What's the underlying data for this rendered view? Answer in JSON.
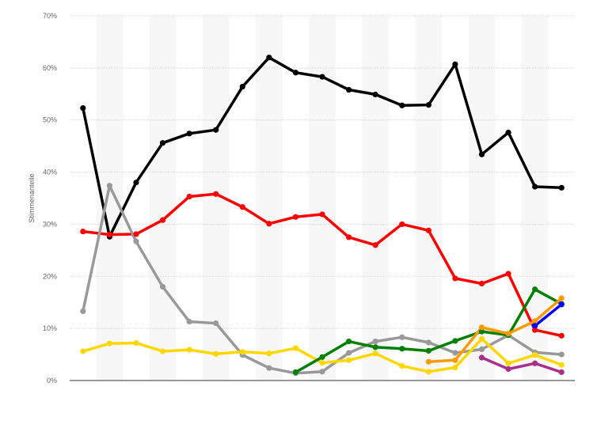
{
  "chart_data": {
    "type": "line",
    "title": "",
    "xlabel": "",
    "ylabel": "Stimmenanteile",
    "ylim": [
      0,
      70
    ],
    "yticks": [
      0,
      10,
      20,
      30,
      40,
      50,
      60,
      70
    ],
    "ytick_labels": [
      "0%",
      "10%",
      "20%",
      "30%",
      "40%",
      "50%",
      "60%",
      "70%"
    ],
    "grid": true,
    "legend": "none",
    "x_count": 19,
    "series": [
      {
        "color": "#000000",
        "values": [
          52.3,
          27.6,
          38.0,
          45.6,
          47.4,
          48.1,
          56.4,
          62.0,
          59.1,
          58.3,
          55.8,
          54.9,
          52.8,
          52.9,
          60.7,
          43.4,
          47.6,
          37.2,
          37.0
        ]
      },
      {
        "color": "#ff0000",
        "values": [
          28.6,
          28.0,
          28.1,
          30.8,
          35.3,
          35.8,
          33.3,
          30.1,
          31.4,
          31.9,
          27.5,
          26.0,
          30.0,
          28.8,
          19.6,
          18.6,
          20.5,
          9.7,
          8.6
        ]
      },
      {
        "color": "#999999",
        "values": [
          13.3,
          37.4,
          26.7,
          18.0,
          11.3,
          11.0,
          4.9,
          2.4,
          1.4,
          1.7,
          5.3,
          7.5,
          8.3,
          7.3,
          5.3,
          6.0,
          8.7,
          5.4,
          5.0
        ]
      },
      {
        "color": "#ffd700",
        "values": [
          5.6,
          7.1,
          7.2,
          5.6,
          5.9,
          5.1,
          5.5,
          5.2,
          6.2,
          3.4,
          3.9,
          5.2,
          2.8,
          1.7,
          2.5,
          8.0,
          3.3,
          4.9,
          3.0
        ]
      },
      {
        "color": "#008000",
        "values": [
          null,
          null,
          null,
          null,
          null,
          null,
          null,
          null,
          1.6,
          4.5,
          7.5,
          6.4,
          6.1,
          5.7,
          7.6,
          9.4,
          8.7,
          17.5,
          14.7
        ]
      },
      {
        "color": "#ff9900",
        "values": [
          null,
          null,
          null,
          null,
          null,
          null,
          null,
          null,
          null,
          null,
          null,
          null,
          null,
          3.6,
          3.9,
          10.2,
          9.0,
          11.4,
          15.8
        ]
      },
      {
        "color": "#0000ff",
        "values": [
          null,
          null,
          null,
          null,
          null,
          null,
          null,
          null,
          null,
          null,
          null,
          null,
          null,
          null,
          null,
          null,
          null,
          10.5,
          14.6
        ]
      },
      {
        "color": "#a8308c",
        "values": [
          null,
          null,
          null,
          null,
          null,
          null,
          null,
          null,
          null,
          null,
          null,
          null,
          null,
          null,
          null,
          4.4,
          2.2,
          3.3,
          1.6
        ]
      }
    ]
  }
}
